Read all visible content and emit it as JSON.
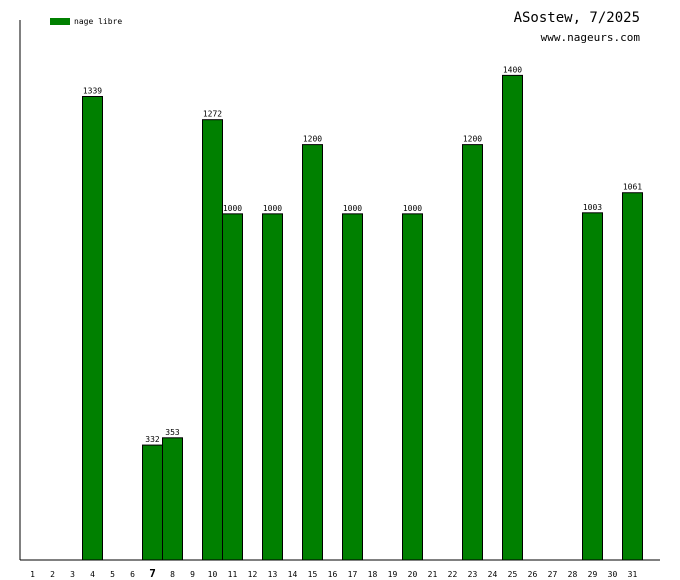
{
  "header": {
    "title": "ASostew, 7/2025",
    "site": "www.nageurs.com"
  },
  "legend": {
    "label": "nage libre",
    "color": "#008000"
  },
  "chart_data": {
    "type": "bar",
    "categories": [
      "1",
      "2",
      "3",
      "4",
      "5",
      "6",
      "7",
      "8",
      "9",
      "10",
      "11",
      "12",
      "13",
      "14",
      "15",
      "16",
      "17",
      "18",
      "19",
      "20",
      "21",
      "22",
      "23",
      "24",
      "25",
      "26",
      "27",
      "28",
      "29",
      "30",
      "31"
    ],
    "highlighted_category": "7",
    "series": [
      {
        "name": "nage libre",
        "color": "#008000",
        "bars": [
          {
            "day": "4",
            "value": 1339
          },
          {
            "day": "7",
            "value": 332
          },
          {
            "day": "8",
            "value": 353
          },
          {
            "day": "10",
            "value": 1272
          },
          {
            "day": "11",
            "value": 1000
          },
          {
            "day": "13",
            "value": 1000
          },
          {
            "day": "15",
            "value": 1200
          },
          {
            "day": "17",
            "value": 1000
          },
          {
            "day": "20",
            "value": 1000
          },
          {
            "day": "23",
            "value": 1200
          },
          {
            "day": "25",
            "value": 1400
          },
          {
            "day": "29",
            "value": 1003
          },
          {
            "day": "31",
            "value": 1061
          }
        ]
      }
    ],
    "ylim": [
      0,
      1560
    ],
    "grid": false,
    "legend_position": "top-left"
  }
}
